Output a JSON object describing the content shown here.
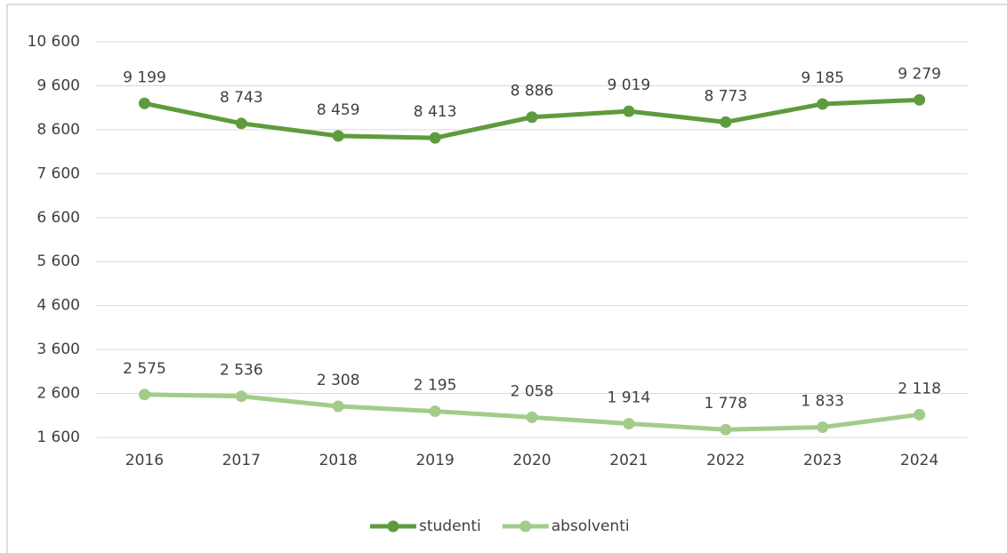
{
  "chart_data": {
    "type": "line",
    "categories": [
      "2016",
      "2017",
      "2018",
      "2019",
      "2020",
      "2021",
      "2022",
      "2023",
      "2024"
    ],
    "series": [
      {
        "name": "studenti",
        "color": "#5e9b3e",
        "values": [
          9199,
          8743,
          8459,
          8413,
          8886,
          9019,
          8773,
          9185,
          9279
        ],
        "value_labels": [
          "9 199",
          "8 743",
          "8 459",
          "8 413",
          "8 886",
          "9 019",
          "8 773",
          "9 185",
          "9 279"
        ]
      },
      {
        "name": "absolventi",
        "color": "#a3cc8a",
        "values": [
          2575,
          2536,
          2308,
          2195,
          2058,
          1914,
          1778,
          1833,
          2118
        ],
        "value_labels": [
          "2 575",
          "2 536",
          "2 308",
          "2 195",
          "2 058",
          "1 914",
          "1 778",
          "1 833",
          "2 118"
        ]
      }
    ],
    "ylim": [
      1600,
      10600
    ],
    "yticks": [
      {
        "value": 1600,
        "label": "1 600"
      },
      {
        "value": 2600,
        "label": "2 600"
      },
      {
        "value": 3600,
        "label": "3 600"
      },
      {
        "value": 4600,
        "label": "4 600"
      },
      {
        "value": 5600,
        "label": "5 600"
      },
      {
        "value": 6600,
        "label": "6 600"
      },
      {
        "value": 7600,
        "label": "7 600"
      },
      {
        "value": 8600,
        "label": "8 600"
      },
      {
        "value": 9600,
        "label": "9 600"
      },
      {
        "value": 10600,
        "label": "10 600"
      }
    ],
    "grid": true,
    "legend": "bottom"
  }
}
